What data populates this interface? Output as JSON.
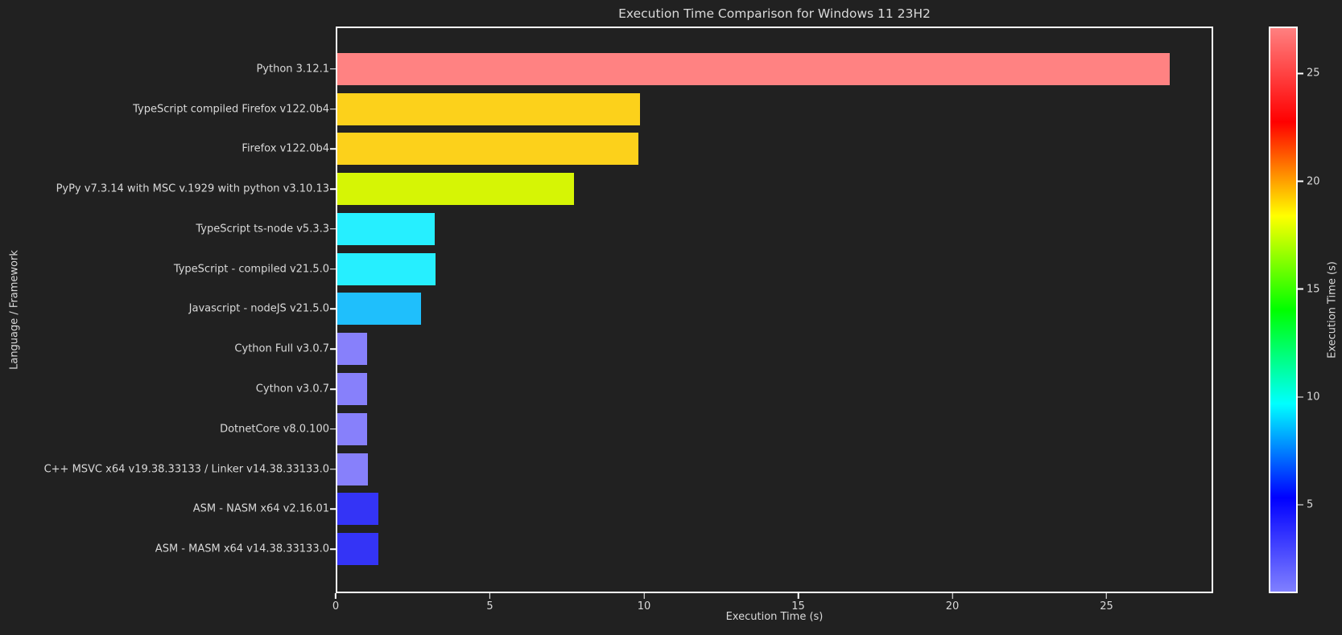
{
  "chart_data": {
    "type": "bar",
    "orientation": "horizontal",
    "title": "Execution Time Comparison for Windows 11 23H2",
    "xlabel": "Execution Time (s)",
    "ylabel": "Language / Framework",
    "xlim": [
      0,
      28.46
    ],
    "xticks": [
      0,
      5,
      10,
      15,
      20,
      25
    ],
    "grid": false,
    "categories": [
      "Python 3.12.1",
      "TypeScript compiled Firefox v122.0b4",
      "Firefox v122.0b4",
      "PyPy v7.3.14 with MSC v.1929 with python v3.10.13",
      "TypeScript ts-node v5.3.3",
      "TypeScript - compiled v21.5.0",
      "Javascript - nodeJS v21.5.0",
      "Cython Full v3.0.7",
      "Cython v3.0.7",
      "DotnetCore v8.0.100",
      "C++ MSVC x64 v19.38.33133 / Linker v14.38.33133.0",
      "ASM - NASM x64 v2.16.01",
      "ASM - MASM x64 v14.38.33133.0"
    ],
    "values": [
      27.1,
      9.86,
      9.79,
      7.71,
      3.17,
      3.2,
      2.73,
      0.98,
      0.98,
      0.98,
      0.99,
      1.33,
      1.33
    ],
    "bar_colors": [
      "#FF8282",
      "#FCD11B",
      "#FCD11B",
      "#D6F505",
      "#26EFFF",
      "#26EFFF",
      "#1FBFFC",
      "#8780FB",
      "#8780FB",
      "#8780FB",
      "#8780FB",
      "#3434F6",
      "#3434F6"
    ],
    "colorbar": {
      "label": "Execution Time (s)",
      "vmin": 0.98,
      "vmax": 27.1,
      "ticks": [
        25,
        20,
        15,
        10,
        5
      ],
      "gradient_top_to_bottom": [
        "#FF8080",
        "#FF0000",
        "#FFFF00",
        "#00FF00",
        "#00FFFF",
        "#0000FF",
        "#8080FF"
      ]
    },
    "colors": {
      "background": "#212121",
      "frame": "#FFFFFF",
      "text": "#D9D9D9"
    }
  }
}
